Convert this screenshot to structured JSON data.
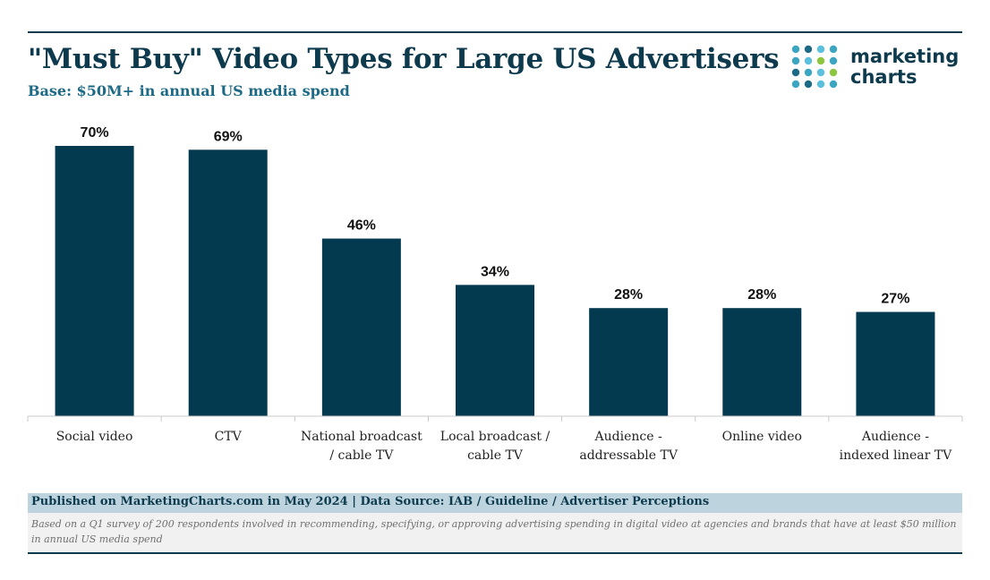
{
  "header": {
    "title": "\"Must Buy\" Video Types for Large US Advertisers",
    "subtitle": "Base: $50M+ in annual US media spend"
  },
  "logo": {
    "line1": "marketing",
    "line2": "charts",
    "dot_colors": [
      "#3aa6c2",
      "#8cc63f",
      "#1d6a86",
      "#5bc0de"
    ]
  },
  "chart_data": {
    "type": "bar",
    "categories": [
      [
        "Social video"
      ],
      [
        "CTV"
      ],
      [
        "National broadcast",
        "/ cable TV"
      ],
      [
        "Local broadcast /",
        "cable TV"
      ],
      [
        "Audience -",
        "addressable TV"
      ],
      [
        "Online video"
      ],
      [
        "Audience -",
        "indexed linear TV"
      ]
    ],
    "values": [
      70,
      69,
      46,
      34,
      28,
      28,
      27
    ],
    "value_labels": [
      "70%",
      "69%",
      "46%",
      "34%",
      "28%",
      "28%",
      "27%"
    ],
    "unit": "%",
    "ylim": [
      0,
      70
    ],
    "bar_color": "#043a4f",
    "grid": false,
    "legend": "none"
  },
  "footer": {
    "published": "Published on MarketingCharts.com in May 2024 | Data Source: IAB / Guideline / Advertiser Perceptions",
    "note": "Based on a Q1 survey of 200 respondents involved in recommending, specifying, or approving advertising spending in digital video at agencies and brands that have at least $50 million in annual US media spend"
  }
}
